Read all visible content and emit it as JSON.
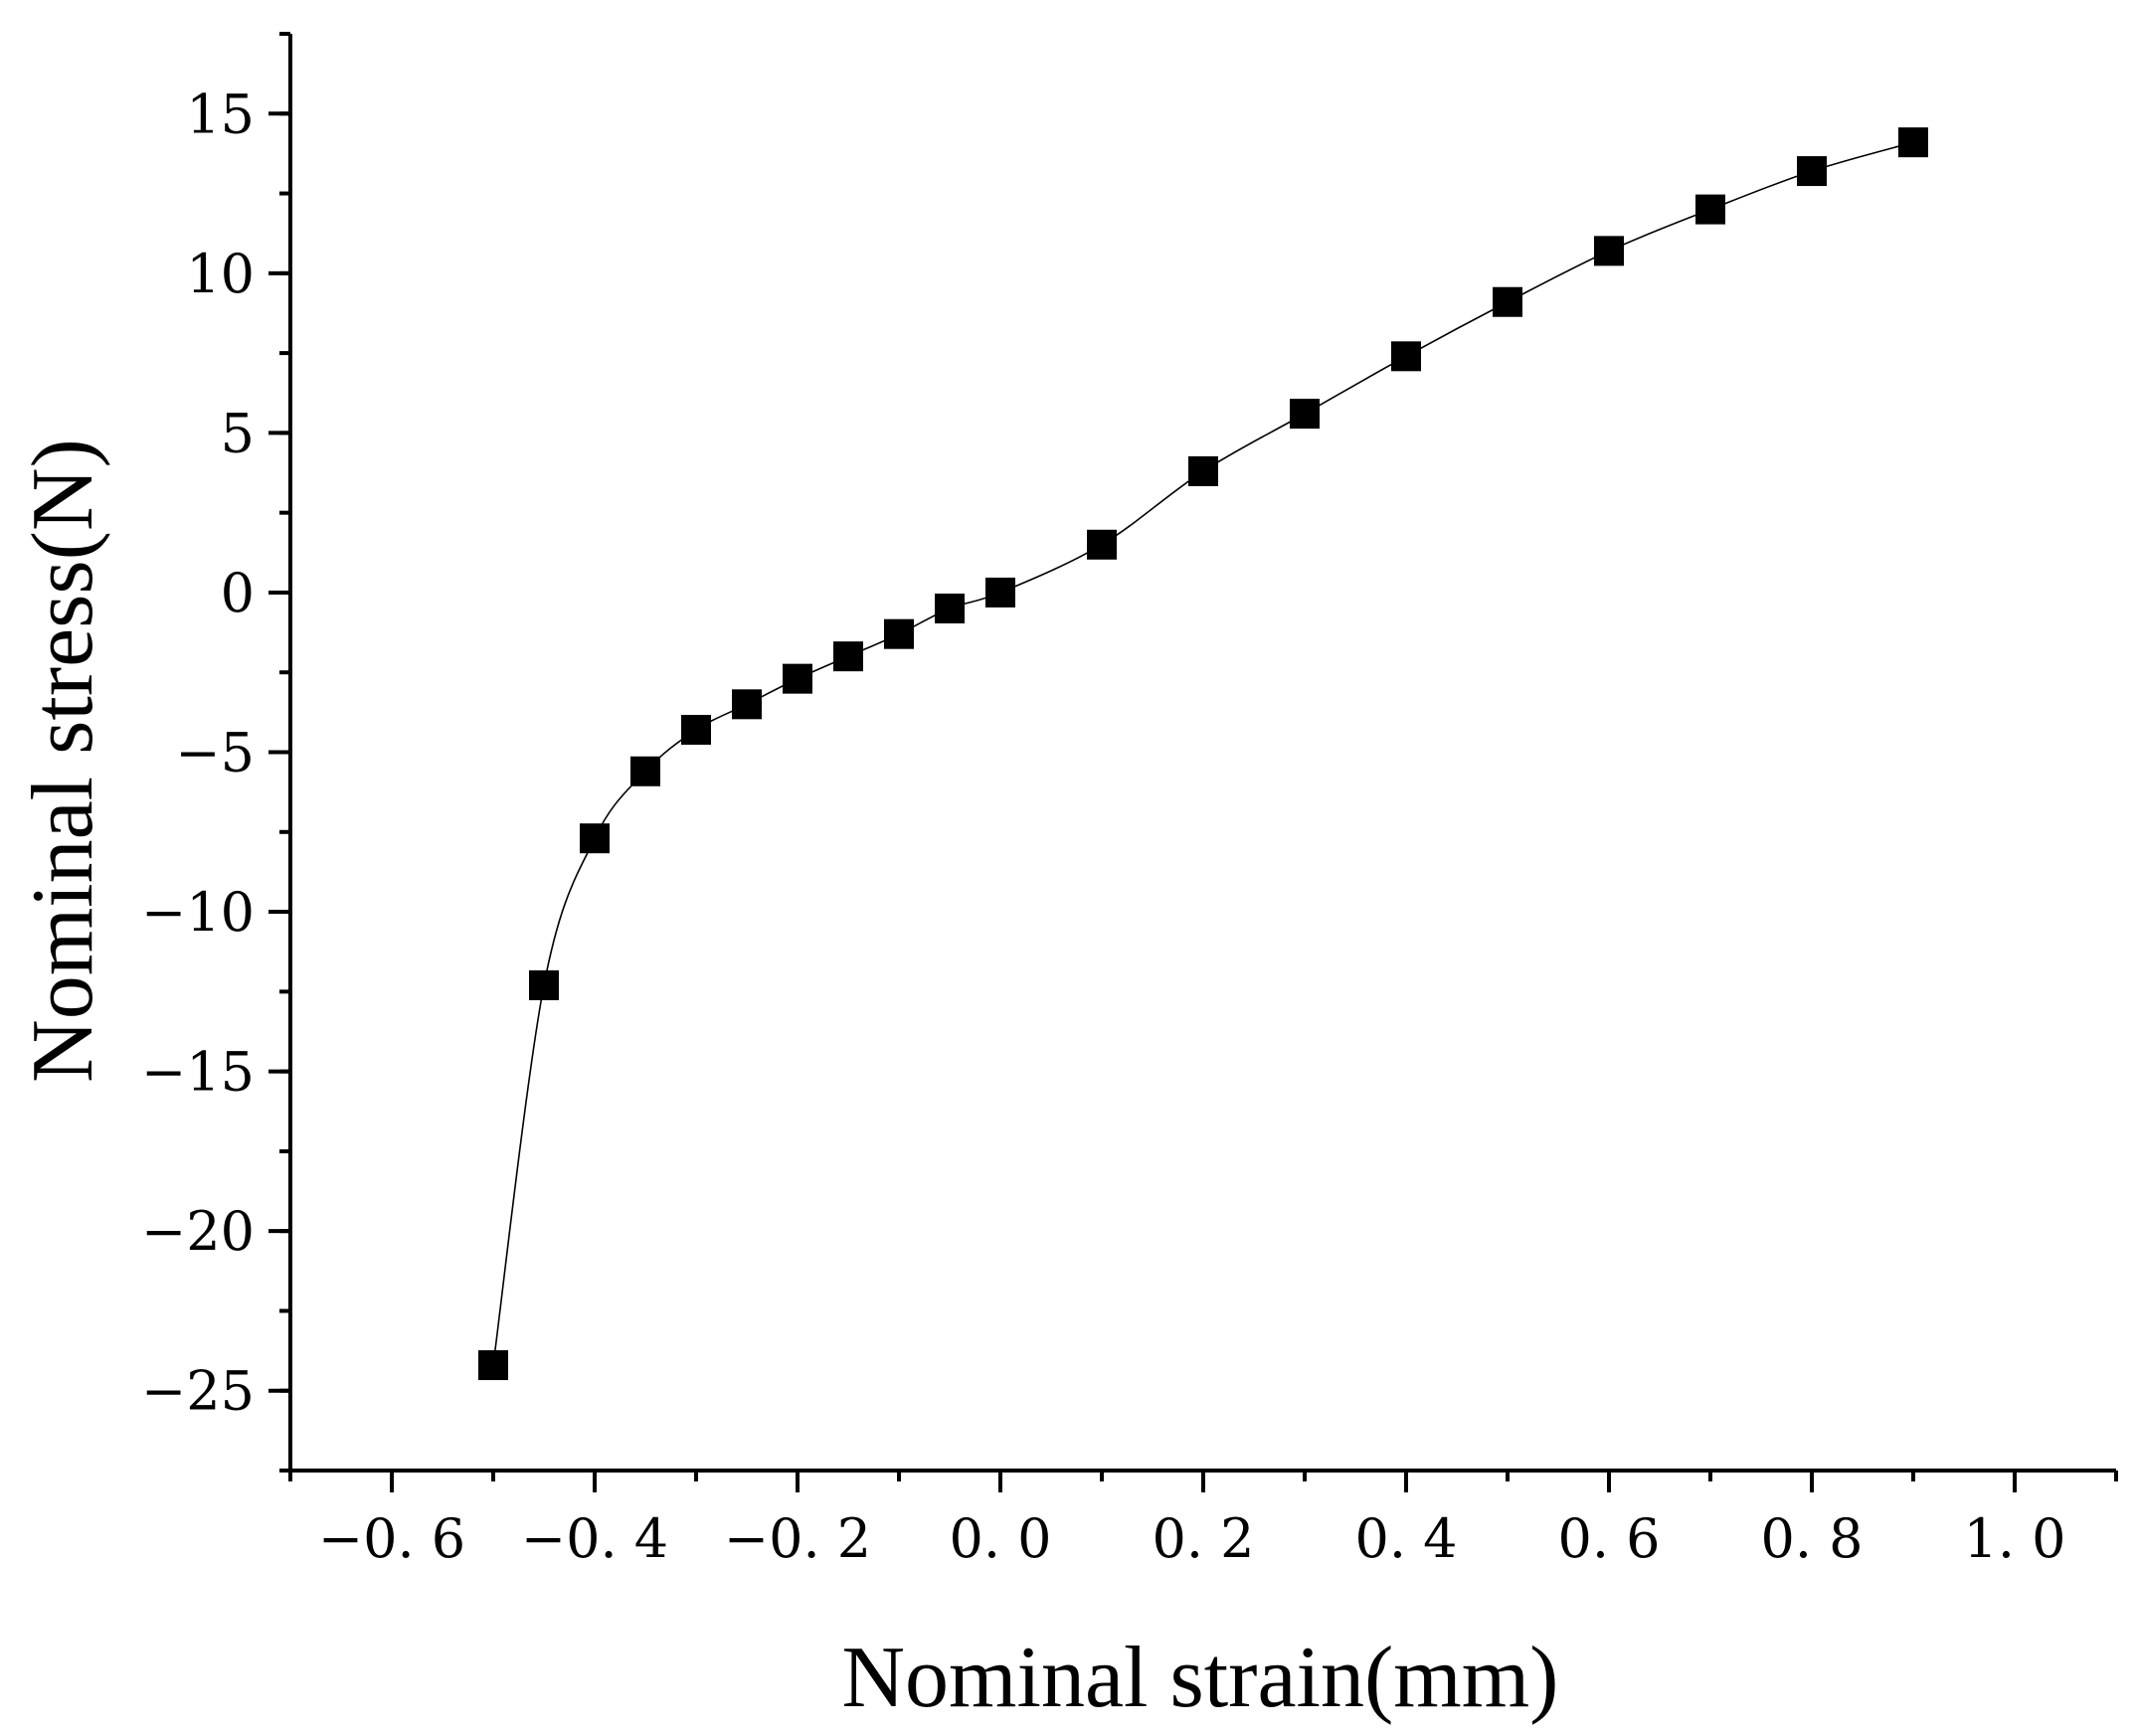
{
  "chart_data": {
    "type": "line",
    "xlabel": "Nominal strain(mm)",
    "ylabel": "Nominal stress(N)",
    "xlim": [
      -0.7,
      1.1
    ],
    "ylim": [
      -27.5,
      17.5
    ],
    "x_ticks": [
      -0.6,
      -0.4,
      -0.2,
      0.0,
      0.2,
      0.4,
      0.6,
      0.8,
      1.0
    ],
    "x_tick_labels": [
      "−0. 6",
      "−0. 4",
      "−0. 2",
      "0. 0",
      "0. 2",
      "0. 4",
      "0. 6",
      "0. 8",
      "1. 0"
    ],
    "x_minor_step": 0.1,
    "y_ticks": [
      15,
      10,
      5,
      0,
      -5,
      -10,
      -15,
      -20,
      -25
    ],
    "y_tick_labels": [
      "15",
      "10",
      "5",
      "0",
      "−5",
      "−10",
      "−15",
      "−20",
      "−25"
    ],
    "y_minor_step": 2.5,
    "grid": false,
    "marker": "square",
    "color": "#000000",
    "series": [
      {
        "x": [
          -0.5,
          -0.45,
          -0.4,
          -0.35,
          -0.3,
          -0.25,
          -0.2,
          -0.15,
          -0.1,
          -0.05,
          0.0,
          0.1,
          0.2,
          0.3,
          0.4,
          0.5,
          0.6,
          0.7,
          0.8,
          0.9
        ],
        "y": [
          -24.2,
          -12.3,
          -7.7,
          -5.6,
          -4.3,
          -3.5,
          -2.7,
          -2.0,
          -1.3,
          -0.5,
          0.0,
          1.5,
          3.8,
          5.6,
          7.4,
          9.1,
          10.7,
          12.0,
          13.2,
          14.1
        ]
      }
    ]
  }
}
